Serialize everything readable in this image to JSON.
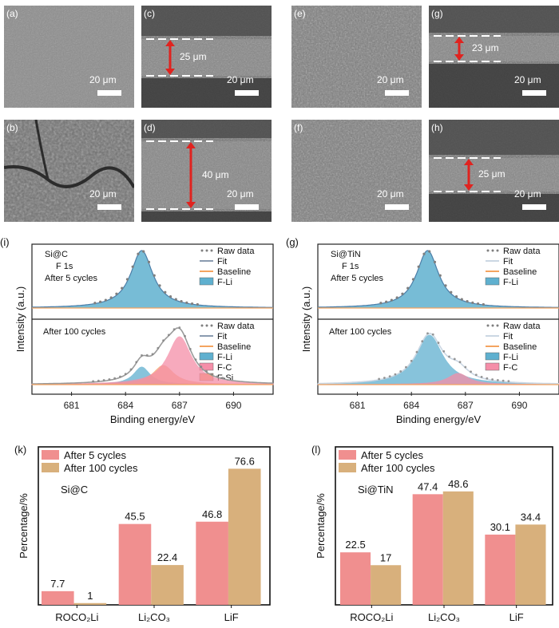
{
  "sem": {
    "panels": [
      {
        "label": "(a)",
        "scale": "20 μm",
        "tone": "plain"
      },
      {
        "label": "(b)",
        "scale": "20 μm",
        "tone": "cracked"
      },
      {
        "label": "(c)",
        "scale": "20 μm",
        "tone": "section",
        "thickness": "25 μm"
      },
      {
        "label": "(d)",
        "scale": "20 μm",
        "tone": "section",
        "thickness": "40 μm"
      },
      {
        "label": "(e)",
        "scale": "20 μm",
        "tone": "grainy"
      },
      {
        "label": "(f)",
        "scale": "20 μm",
        "tone": "grainy"
      },
      {
        "label": "(g)",
        "scale": "20 μm",
        "tone": "section",
        "thickness": "23 μm"
      },
      {
        "label": "(h)",
        "scale": "20 μm",
        "tone": "section",
        "thickness": "25 μm"
      }
    ]
  },
  "xps": {
    "y_label": "Intensity (a.u.)",
    "x_label": "Binding energy/eV",
    "x_ticks": [
      "681",
      "684",
      "687",
      "690"
    ],
    "colors": {
      "raw": "#7f7f7f",
      "fit": "#8a9bb0",
      "fit_light": "#cbd7e3",
      "baseline": "#f4a460",
      "fli": "#5fb0cf",
      "fc": "#f58ea8",
      "fsi": "#f7a66b"
    },
    "panels": [
      {
        "label": "(i)",
        "material": "Si@C",
        "top": {
          "lines": [
            "F 1s",
            "After 5 cycles"
          ],
          "legend": [
            "Raw data",
            "Fit",
            "Baseline",
            "F-Li"
          ]
        },
        "bottom": {
          "title": "After 100 cycles",
          "legend": [
            "Raw data",
            "Fit",
            "Baseline",
            "F-Li",
            "F-C",
            "F-Si"
          ]
        }
      },
      {
        "label": "(g)",
        "material": "Si@TiN",
        "top": {
          "lines": [
            "F 1s",
            "After 5 cycles"
          ],
          "legend": [
            "Raw data",
            "Fit",
            "Baseline",
            "F-Li"
          ]
        },
        "bottom": {
          "title": "After 100 cycles",
          "legend": [
            "Raw data",
            "Fit",
            "Baseline",
            "F-Li",
            "F-C"
          ]
        }
      }
    ]
  },
  "chart_data": [
    {
      "type": "bar",
      "panel": "(k)",
      "subtitle": "Si@C",
      "ylabel": "Percentage/%",
      "categories": [
        "ROCO₂Li",
        "Li₂CO₃",
        "LiF"
      ],
      "series": [
        {
          "name": "After 5 cycles",
          "values": [
            7.7,
            45.5,
            46.8
          ],
          "color": "#f08f8f"
        },
        {
          "name": "After 100 cycles",
          "values": [
            1,
            22.4,
            76.6
          ],
          "color": "#d8b07c"
        }
      ],
      "ylim": [
        0,
        88
      ],
      "legend": "top-left"
    },
    {
      "type": "bar",
      "panel": "(l)",
      "subtitle": "Si@TiN",
      "ylabel": "Percentage/%",
      "categories": [
        "ROCO₂Li",
        "Li₂CO₃",
        "LiF"
      ],
      "series": [
        {
          "name": "After 5 cycles",
          "values": [
            22.5,
            47.4,
            30.1
          ],
          "color": "#f08f8f"
        },
        {
          "name": "After 100 cycles",
          "values": [
            17,
            48.6,
            34.4
          ],
          "color": "#d8b07c"
        }
      ],
      "ylim": [
        0,
        67
      ],
      "legend": "top-left"
    }
  ]
}
